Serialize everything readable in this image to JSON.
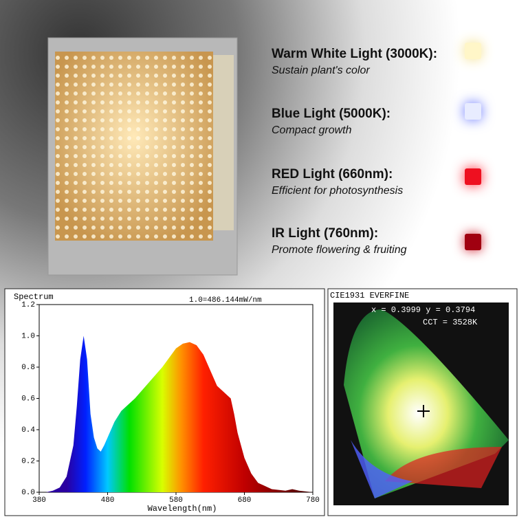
{
  "features": [
    {
      "title": "Warm White Light (3000K):",
      "description": "Sustain plant's color"
    },
    {
      "title": "Blue Light (5000K):",
      "description": "Compact growth"
    },
    {
      "title": "RED Light (660nm):",
      "description": "Efficient for photosynthesis"
    },
    {
      "title": "IR Light (760nm):",
      "description": "Promote flowering & fruiting"
    }
  ],
  "chart_data": {
    "type": "area",
    "title": "Spectrum",
    "annotation": "1.0=486.144mW/nm",
    "x_label": "Wavelength(nm)",
    "x": [
      390,
      400,
      410,
      420,
      430,
      435,
      440,
      445,
      450,
      455,
      460,
      465,
      470,
      475,
      480,
      490,
      500,
      510,
      520,
      530,
      540,
      550,
      560,
      570,
      580,
      590,
      600,
      610,
      620,
      630,
      640,
      650,
      655,
      660,
      665,
      670,
      680,
      690,
      700,
      720,
      740,
      750,
      760,
      780
    ],
    "values": [
      0,
      0.01,
      0.03,
      0.1,
      0.3,
      0.55,
      0.85,
      1.0,
      0.85,
      0.5,
      0.35,
      0.28,
      0.26,
      0.3,
      0.35,
      0.45,
      0.52,
      0.56,
      0.6,
      0.65,
      0.7,
      0.75,
      0.8,
      0.86,
      0.92,
      0.95,
      0.96,
      0.94,
      0.88,
      0.78,
      0.68,
      0.64,
      0.62,
      0.6,
      0.5,
      0.38,
      0.22,
      0.12,
      0.06,
      0.02,
      0.01,
      0.02,
      0.01,
      0
    ],
    "xlim": [
      380,
      780
    ],
    "xticks": [
      380,
      480,
      580,
      680,
      780
    ],
    "ylim": [
      0,
      1.2
    ],
    "yticks": [
      {
        "value": 0,
        "label": "0.0"
      },
      0.2,
      0.4,
      0.6,
      0.8,
      {
        "value": 1,
        "label": "1.0"
      },
      1.2
    ]
  },
  "cie": {
    "title": "CIE1931 EVERFINE",
    "coordinates": "x = 0.3999 y = 0.3794",
    "cct": "CCT = 3528K"
  }
}
